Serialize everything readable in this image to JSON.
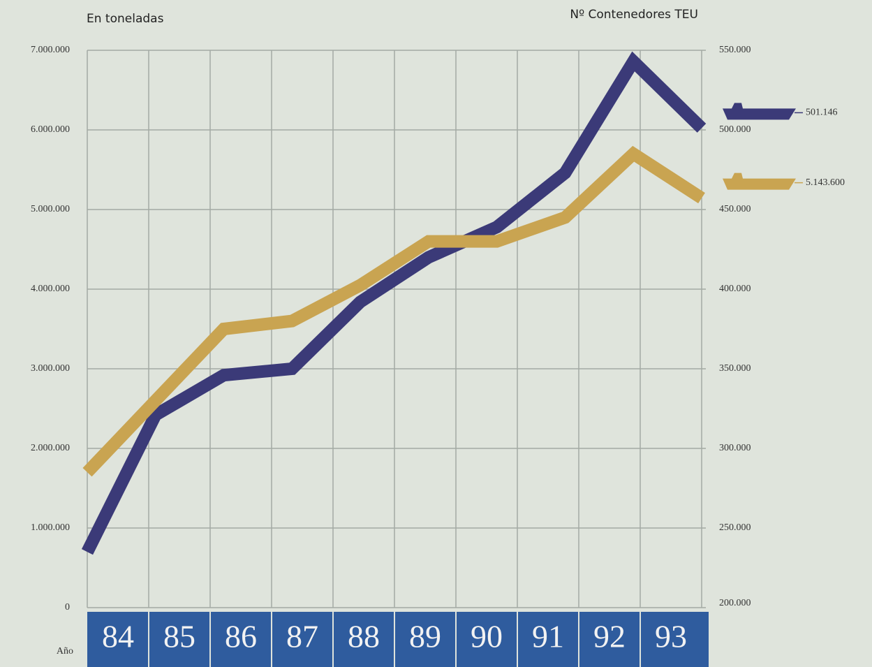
{
  "chart_data": {
    "type": "line",
    "ylabel": "En toneladas",
    "y2label": "Nº Contenedores TEU",
    "xlabel": "Año",
    "categories": [
      "84",
      "85",
      "86",
      "87",
      "88",
      "89",
      "90",
      "91",
      "92",
      "93"
    ],
    "series": [
      {
        "color": "#3b3a78",
        "axis": "y2",
        "values": [
          235000,
          321000,
          346000,
          350000,
          392000,
          420000,
          439000,
          473000,
          543000,
          501146
        ],
        "value_labels": [
          null,
          null,
          null,
          null,
          null,
          null,
          null,
          null,
          null,
          "501.146"
        ]
      },
      {
        "color": "#c9a451",
        "values": [
          1700000,
          2600000,
          3500000,
          3600000,
          4050000,
          4600000,
          4600000,
          4900000,
          5700000,
          5143600
        ],
        "value_labels": [
          null,
          null,
          null,
          null,
          null,
          null,
          null,
          null,
          null,
          "5.143.600"
        ]
      }
    ],
    "ylim": [
      0,
      7000000
    ],
    "yticks": [
      0,
      {
        "value": 1000000,
        "label": "1.000.000"
      },
      {
        "value": 2000000,
        "label": "2.000.000"
      },
      {
        "value": 3000000,
        "label": "3.000.000"
      },
      {
        "value": 4000000,
        "label": "4.000.000"
      },
      {
        "value": 5000000,
        "label": "5.000.000"
      },
      {
        "value": 6000000,
        "label": "6.000.000"
      },
      {
        "value": 7000000,
        "label": "7.000.000"
      }
    ],
    "y2lim": [
      200000,
      550000
    ],
    "y2ticks": [
      {
        "value": 200000,
        "label": "200.000"
      },
      {
        "value": 250000,
        "label": "250.000"
      },
      {
        "value": 300000,
        "label": "300.000"
      },
      {
        "value": 350000,
        "label": "350.000"
      },
      {
        "value": 400000,
        "label": "400.000"
      },
      {
        "value": 450000,
        "label": "450.000"
      },
      {
        "value": 500000,
        "label": "500.000"
      },
      {
        "value": 550000,
        "label": "550.000"
      }
    ],
    "grid": true
  }
}
